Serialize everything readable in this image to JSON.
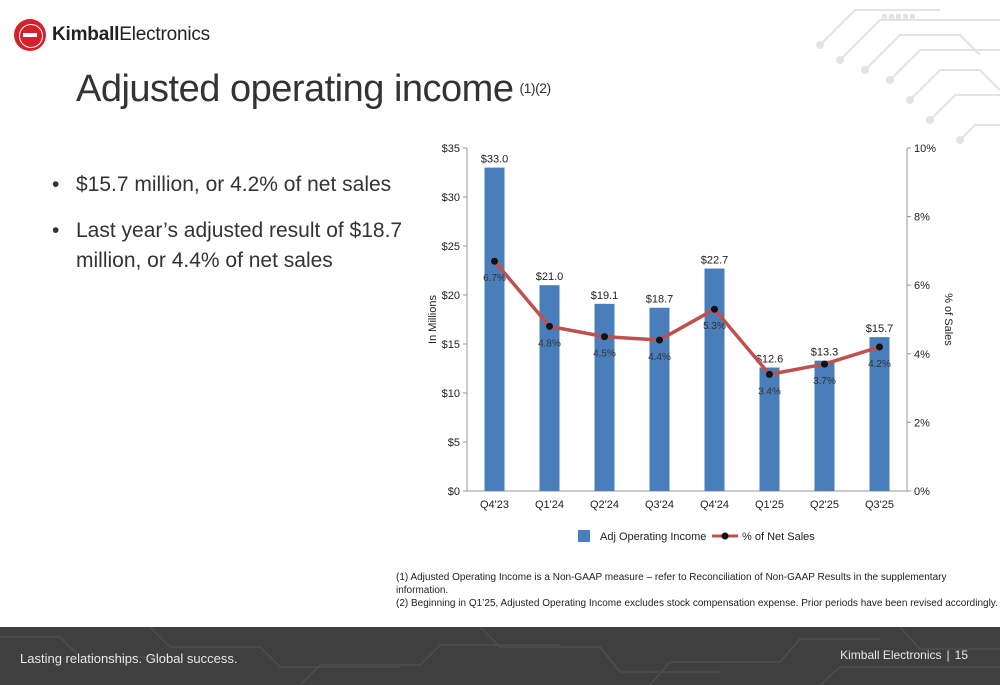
{
  "brand": {
    "name_bold": "Kimball",
    "name_regular": "Electronics"
  },
  "title": {
    "text": "Adjusted operating income",
    "superscript": "(1)(2)"
  },
  "bullets": [
    "$15.7 million, or 4.2% of net sales",
    "Last year’s adjusted result of $18.7 million, or 4.4% of net sales"
  ],
  "chart_data": {
    "type": "bar",
    "categories": [
      "Q4'23",
      "Q1'24",
      "Q2'24",
      "Q3'24",
      "Q4'24",
      "Q1'25",
      "Q2'25",
      "Q3'25"
    ],
    "series": [
      {
        "name": "Adj Operating Income",
        "type": "bar",
        "axis": "left",
        "color": "#4a7ebb",
        "values": [
          33.0,
          21.0,
          19.1,
          18.7,
          22.7,
          12.6,
          13.3,
          15.7
        ],
        "labels": [
          "$33.0",
          "$21.0",
          "$19.1",
          "$18.7",
          "$22.7",
          "$12.6",
          "$13.3",
          "$15.7"
        ]
      },
      {
        "name": "% of Net Sales",
        "type": "line",
        "axis": "right",
        "color": "#c0504d",
        "values": [
          6.7,
          4.8,
          4.5,
          4.4,
          5.3,
          3.4,
          3.7,
          4.2
        ],
        "labels": [
          "6.7%",
          "4.8%",
          "4.5%",
          "4.4%",
          "5.3%",
          "3.4%",
          "3.7%",
          "4.2%"
        ]
      }
    ],
    "ylabel": "In Millions",
    "ylabel_right": "% of Sales",
    "ylim": [
      0,
      35
    ],
    "ylim_right": [
      0,
      10
    ],
    "yticks": [
      "$0",
      "$5",
      "$10",
      "$15",
      "$20",
      "$25",
      "$30",
      "$35"
    ],
    "yticks_right": [
      "0%",
      "2%",
      "4%",
      "6%",
      "8%",
      "10%"
    ],
    "grid": false,
    "legend_position": "bottom"
  },
  "notes": [
    "(1)  Adjusted Operating Income is a Non-GAAP measure – refer to Reconciliation of Non-GAAP Results in the supplementary information.",
    "(2)  Beginning in Q1’25, Adjusted Operating Income excludes stock compensation expense.  Prior periods have been revised accordingly."
  ],
  "footer": {
    "tagline": "Lasting relationships. Global success.",
    "company": "Kimball Electronics",
    "separator": "|",
    "page_number": "15"
  }
}
